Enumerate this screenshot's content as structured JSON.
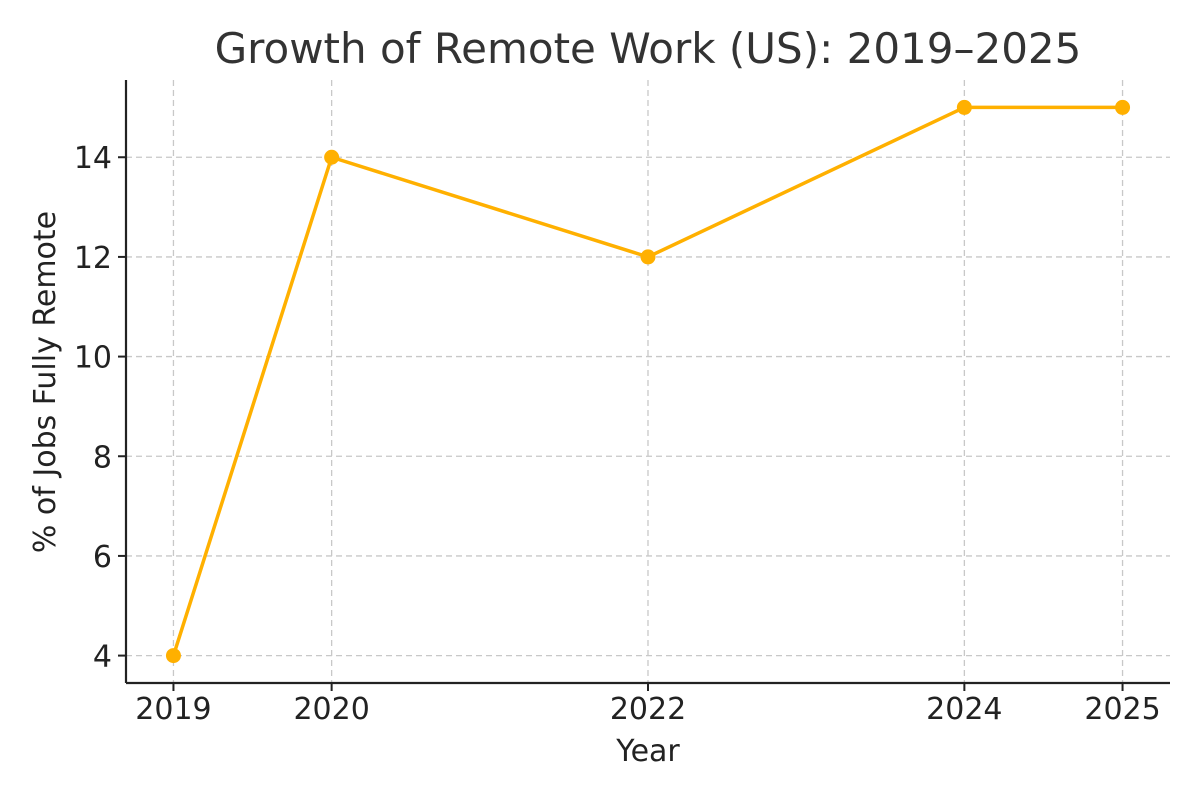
{
  "chart_data": {
    "type": "line",
    "title": "Growth of Remote Work (US): 2019–2025",
    "xlabel": "Year",
    "ylabel": "% of Jobs Fully Remote",
    "x": [
      2019,
      2020,
      2022,
      2024,
      2025
    ],
    "xticks": [
      2019,
      2020,
      2022,
      2024,
      2025
    ],
    "yticks": [
      4,
      6,
      8,
      10,
      12,
      14
    ],
    "xlim": [
      2018.7,
      2025.3
    ],
    "ylim": [
      3.45,
      15.55
    ],
    "series": [
      {
        "values": [
          4,
          14,
          12,
          15,
          15
        ],
        "color": "#FFB000",
        "marker": "circle"
      }
    ],
    "grid": true,
    "legend": "none"
  }
}
